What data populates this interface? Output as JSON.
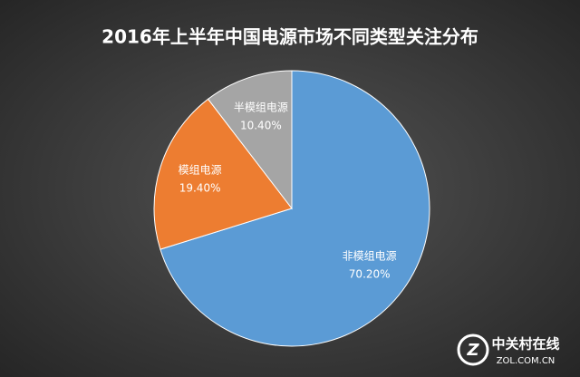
{
  "chart_data": {
    "type": "pie",
    "title": "2016年上半年中国电源市场不同类型关注分布",
    "categories": [
      "非模组电源",
      "模组电源",
      "半模组电源"
    ],
    "values": [
      70.2,
      19.4,
      10.4
    ],
    "value_labels": [
      "70.20%",
      "19.40%",
      "10.40%"
    ],
    "colors": [
      "#5b9bd5",
      "#ed7d31",
      "#a5a5a5"
    ]
  },
  "watermark": {
    "brand": "中关村在线",
    "site": "ZOL.COM.CN"
  }
}
